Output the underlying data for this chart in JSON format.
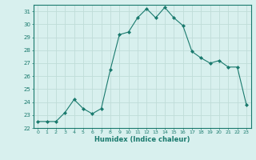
{
  "x": [
    0,
    1,
    2,
    3,
    4,
    5,
    6,
    7,
    8,
    9,
    10,
    11,
    12,
    13,
    14,
    15,
    16,
    17,
    18,
    19,
    20,
    21,
    22,
    23
  ],
  "y": [
    22.5,
    22.5,
    22.5,
    23.2,
    24.2,
    23.5,
    23.1,
    23.5,
    26.5,
    29.2,
    29.4,
    30.5,
    31.2,
    30.5,
    31.3,
    30.5,
    29.9,
    27.9,
    27.4,
    27.0,
    27.2,
    26.7,
    26.7,
    23.8
  ],
  "xlabel": "Humidex (Indice chaleur)",
  "ylim": [
    22,
    31.5
  ],
  "xlim": [
    -0.5,
    23.5
  ],
  "yticks": [
    22,
    23,
    24,
    25,
    26,
    27,
    28,
    29,
    30,
    31
  ],
  "xticks": [
    0,
    1,
    2,
    3,
    4,
    5,
    6,
    7,
    8,
    9,
    10,
    11,
    12,
    13,
    14,
    15,
    16,
    17,
    18,
    19,
    20,
    21,
    22,
    23
  ],
  "line_color": "#1a7a6e",
  "marker_color": "#1a7a6e",
  "bg_color": "#d8f0ee",
  "grid_color": "#c0dcd8",
  "axis_color": "#1a7a6e",
  "label_color": "#1a7a6e"
}
